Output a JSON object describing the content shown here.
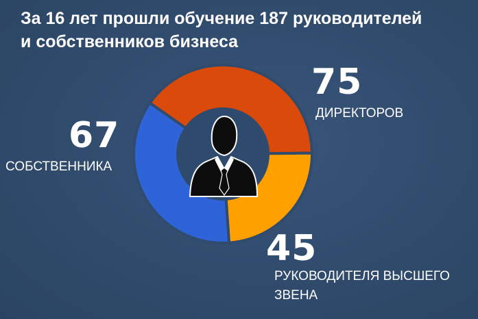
{
  "header": {
    "title_line1": "За 16 лет прошли обучение 187 руководителей",
    "title_line2": "и собственников бизнеса"
  },
  "chart_data": {
    "type": "pie",
    "donut": true,
    "center_icon": "businessman-silhouette-icon",
    "title": "",
    "categories": [
      "ДИРЕКТОРОВ",
      "РУКОВОДИТЕЛЯ ВЫСШЕГО ЗВЕНА",
      "СОБСТВЕННИКА"
    ],
    "values": [
      75,
      45,
      67
    ],
    "value_labels": [
      "75",
      "45",
      "67"
    ],
    "colors": [
      "#d94a0b",
      "#ffa000",
      "#2f64d8"
    ],
    "legend": "none"
  },
  "colors": {
    "background": "#304b6c",
    "hole": "#2e4a6c",
    "text": "#ffffff"
  }
}
